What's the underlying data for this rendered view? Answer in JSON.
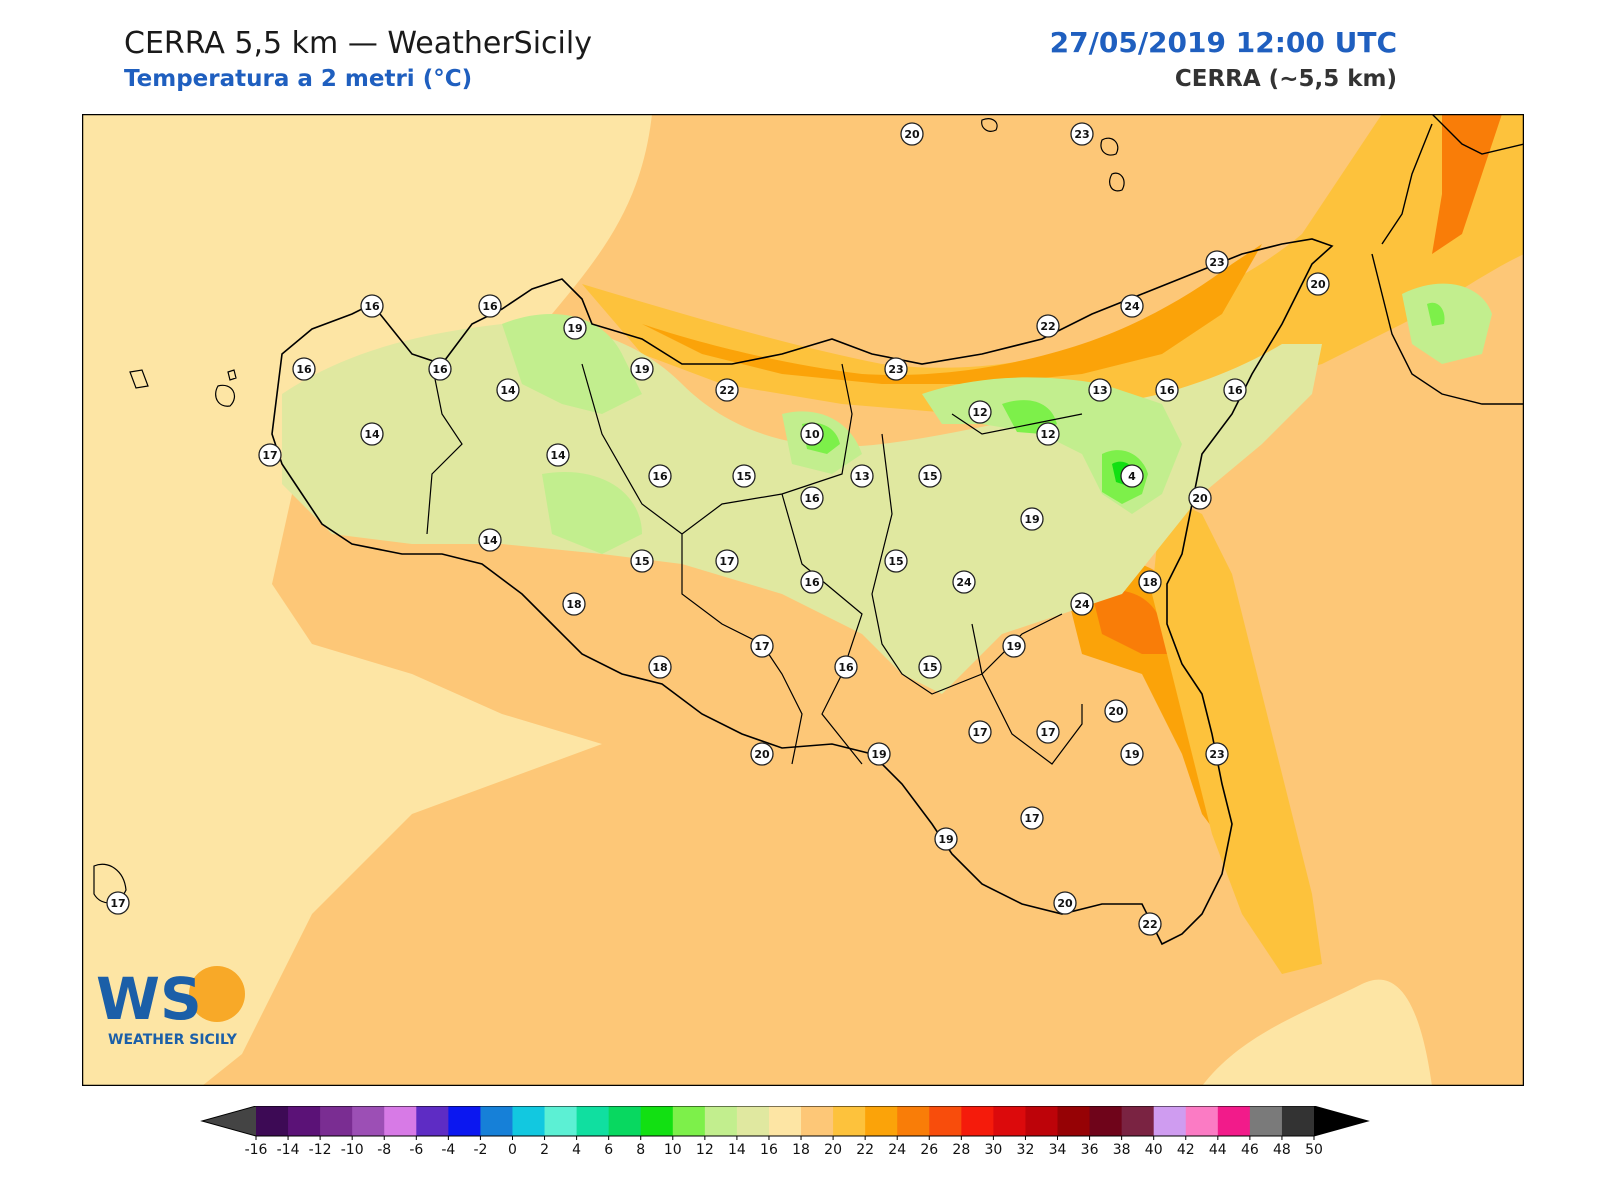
{
  "header": {
    "title": "CERRA 5,5 km — WeatherSicily",
    "subtitle": "Temperatura a 2 metri (°C)",
    "datetime": "27/05/2019 12:00 UTC",
    "model": "CERRA (~5,5 km)"
  },
  "logo": {
    "letters": "WS",
    "name": "WEATHER SICILY"
  },
  "map": {
    "variable": "2m temperature",
    "unit": "°C",
    "stations": [
      {
        "value": "20",
        "icon": "station-marker"
      },
      {
        "value": "23"
      },
      {
        "value": "23"
      },
      {
        "value": "20"
      },
      {
        "value": "24"
      },
      {
        "value": "22"
      },
      {
        "value": "16"
      },
      {
        "value": "16"
      },
      {
        "value": "19"
      },
      {
        "value": "16"
      },
      {
        "value": "16"
      },
      {
        "value": "19"
      },
      {
        "value": "14"
      },
      {
        "value": "22"
      },
      {
        "value": "23"
      },
      {
        "value": "13"
      },
      {
        "value": "16"
      },
      {
        "value": "16"
      },
      {
        "value": "12"
      },
      {
        "value": "12"
      },
      {
        "value": "14"
      },
      {
        "value": "10"
      },
      {
        "value": "17"
      },
      {
        "value": "14"
      },
      {
        "value": "16"
      },
      {
        "value": "15"
      },
      {
        "value": "13"
      },
      {
        "value": "15"
      },
      {
        "value": "4"
      },
      {
        "value": "20"
      },
      {
        "value": "16"
      },
      {
        "value": "19"
      },
      {
        "value": "14"
      },
      {
        "value": "15"
      },
      {
        "value": "17"
      },
      {
        "value": "16"
      },
      {
        "value": "15"
      },
      {
        "value": "18"
      },
      {
        "value": "24"
      },
      {
        "value": "24"
      },
      {
        "value": "18"
      },
      {
        "value": "17"
      },
      {
        "value": "16"
      },
      {
        "value": "15"
      },
      {
        "value": "19"
      },
      {
        "value": "18"
      },
      {
        "value": "20"
      },
      {
        "value": "17"
      },
      {
        "value": "17"
      },
      {
        "value": "20"
      },
      {
        "value": "19"
      },
      {
        "value": "23"
      },
      {
        "value": "17"
      },
      {
        "value": "19"
      },
      {
        "value": "19"
      },
      {
        "value": "20"
      },
      {
        "value": "22"
      },
      {
        "value": "17"
      }
    ]
  },
  "colorbar": {
    "ticks": [
      "-16",
      "-14",
      "-12",
      "-10",
      "-8",
      "-6",
      "-4",
      "-2",
      "0",
      "2",
      "4",
      "6",
      "8",
      "10",
      "12",
      "14",
      "16",
      "18",
      "20",
      "22",
      "24",
      "26",
      "28",
      "30",
      "32",
      "34",
      "36",
      "38",
      "40",
      "42",
      "44",
      "46",
      "48",
      "50"
    ],
    "colors": [
      "#3d0a55",
      "#5b1277",
      "#7a2d92",
      "#9c4fb5",
      "#d77ae6",
      "#5e2cc4",
      "#0b17f0",
      "#1680d8",
      "#12c8e0",
      "#5cf0d4",
      "#10dfa0",
      "#08d860",
      "#12e012",
      "#7df04a",
      "#c2ee8e",
      "#e0e8a0",
      "#fde5a4",
      "#fdc777",
      "#fdc23c",
      "#fba309",
      "#f97d08",
      "#f84d0c",
      "#f51b0b",
      "#dc0a0c",
      "#bd0309",
      "#960205",
      "#6f041a",
      "#7a2342",
      "#cf9cf0",
      "#fb7bc4",
      "#f21b8a",
      "#7a7a7a",
      "#333333"
    ],
    "under_color": "#444444",
    "over_color": "#000000"
  },
  "legend_colors": {
    "background_warm": "#fdc777",
    "background_light": "#fde5a4",
    "accent_blue": "#1f5fbf"
  }
}
